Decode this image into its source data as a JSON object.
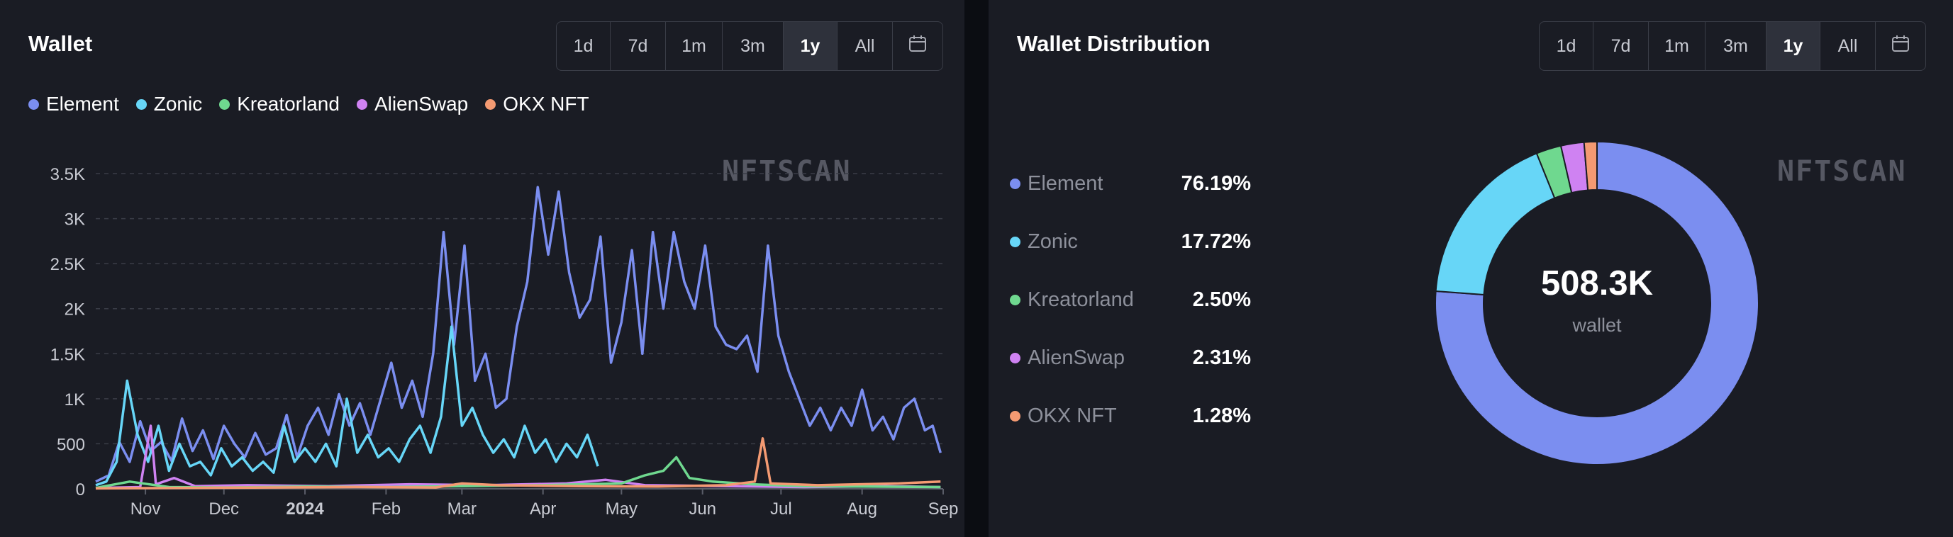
{
  "wallet_panel": {
    "title": "Wallet",
    "ranges": [
      "1d",
      "7d",
      "1m",
      "3m",
      "1y",
      "All"
    ],
    "active_range": "1y",
    "watermark": "NFTSCAN"
  },
  "distribution_panel": {
    "title": "Wallet Distribution",
    "ranges": [
      "1d",
      "7d",
      "1m",
      "3m",
      "1y",
      "All"
    ],
    "active_range": "1y",
    "watermark": "NFTSCAN",
    "center_value": "508.3K",
    "center_label": "wallet",
    "rows": [
      {
        "name": "Element",
        "pct": "76.19%"
      },
      {
        "name": "Zonic",
        "pct": "17.72%"
      },
      {
        "name": "Kreatorland",
        "pct": "2.50%"
      },
      {
        "name": "AlienSwap",
        "pct": "2.31%"
      },
      {
        "name": "OKX NFT",
        "pct": "1.28%"
      }
    ]
  },
  "colors": {
    "Element": "#7b8ef0",
    "Zonic": "#67d6f7",
    "Kreatorland": "#6fd88f",
    "AlienSwap": "#cf82f2",
    "OKX NFT": "#f49a72",
    "background": "#1a1c24",
    "grid": "#3a3d47"
  },
  "chart_data": [
    {
      "type": "line",
      "title": "Wallet",
      "x_labels": [
        "Nov",
        "Dec",
        "2024",
        "Feb",
        "Mar",
        "Apr",
        "May",
        "Jun",
        "Jul",
        "Aug",
        "Sep"
      ],
      "x_range": [
        "2023-10-13",
        "2024-09-01"
      ],
      "y_ticks": [
        "0",
        "500",
        "1K",
        "1.5K",
        "2K",
        "2.5K",
        "3K",
        "3.5K"
      ],
      "ylim": [
        0,
        3500
      ],
      "grid": true,
      "legend_position": "top-left",
      "series": [
        {
          "name": "Element",
          "points": [
            [
              "2023-10-13",
              80
            ],
            [
              "2023-10-18",
              150
            ],
            [
              "2023-10-22",
              520
            ],
            [
              "2023-10-26",
              300
            ],
            [
              "2023-10-30",
              750
            ],
            [
              "2023-11-03",
              420
            ],
            [
              "2023-11-07",
              520
            ],
            [
              "2023-11-11",
              310
            ],
            [
              "2023-11-15",
              780
            ],
            [
              "2023-11-19",
              420
            ],
            [
              "2023-11-23",
              650
            ],
            [
              "2023-11-27",
              330
            ],
            [
              "2023-12-01",
              700
            ],
            [
              "2023-12-05",
              500
            ],
            [
              "2023-12-09",
              350
            ],
            [
              "2023-12-13",
              620
            ],
            [
              "2023-12-17",
              380
            ],
            [
              "2023-12-21",
              450
            ],
            [
              "2023-12-25",
              820
            ],
            [
              "2023-12-29",
              350
            ],
            [
              "2024-01-02",
              700
            ],
            [
              "2024-01-06",
              900
            ],
            [
              "2024-01-10",
              600
            ],
            [
              "2024-01-14",
              1050
            ],
            [
              "2024-01-18",
              700
            ],
            [
              "2024-01-22",
              950
            ],
            [
              "2024-01-26",
              600
            ],
            [
              "2024-01-30",
              1000
            ],
            [
              "2024-02-03",
              1400
            ],
            [
              "2024-02-07",
              900
            ],
            [
              "2024-02-11",
              1200
            ],
            [
              "2024-02-15",
              800
            ],
            [
              "2024-02-19",
              1500
            ],
            [
              "2024-02-23",
              2850
            ],
            [
              "2024-02-27",
              1600
            ],
            [
              "2024-03-02",
              2700
            ],
            [
              "2024-03-06",
              1200
            ],
            [
              "2024-03-10",
              1500
            ],
            [
              "2024-03-14",
              900
            ],
            [
              "2024-03-18",
              1000
            ],
            [
              "2024-03-22",
              1800
            ],
            [
              "2024-03-26",
              2300
            ],
            [
              "2024-03-30",
              3350
            ],
            [
              "2024-04-03",
              2600
            ],
            [
              "2024-04-07",
              3300
            ],
            [
              "2024-04-11",
              2400
            ],
            [
              "2024-04-15",
              1900
            ],
            [
              "2024-04-19",
              2100
            ],
            [
              "2024-04-23",
              2800
            ],
            [
              "2024-04-27",
              1400
            ],
            [
              "2024-05-01",
              1850
            ],
            [
              "2024-05-05",
              2650
            ],
            [
              "2024-05-09",
              1500
            ],
            [
              "2024-05-13",
              2850
            ],
            [
              "2024-05-17",
              2000
            ],
            [
              "2024-05-21",
              2850
            ],
            [
              "2024-05-25",
              2300
            ],
            [
              "2024-05-29",
              2000
            ],
            [
              "2024-06-02",
              2700
            ],
            [
              "2024-06-06",
              1800
            ],
            [
              "2024-06-10",
              1600
            ],
            [
              "2024-06-14",
              1550
            ],
            [
              "2024-06-18",
              1700
            ],
            [
              "2024-06-22",
              1300
            ],
            [
              "2024-06-26",
              2700
            ],
            [
              "2024-06-30",
              1700
            ],
            [
              "2024-07-04",
              1300
            ],
            [
              "2024-07-08",
              1000
            ],
            [
              "2024-07-12",
              700
            ],
            [
              "2024-07-16",
              900
            ],
            [
              "2024-07-20",
              650
            ],
            [
              "2024-07-24",
              900
            ],
            [
              "2024-07-28",
              700
            ],
            [
              "2024-08-01",
              1100
            ],
            [
              "2024-08-05",
              650
            ],
            [
              "2024-08-09",
              800
            ],
            [
              "2024-08-13",
              550
            ],
            [
              "2024-08-17",
              900
            ],
            [
              "2024-08-21",
              1000
            ],
            [
              "2024-08-25",
              650
            ],
            [
              "2024-08-28",
              700
            ],
            [
              "2024-08-31",
              400
            ]
          ]
        },
        {
          "name": "Zonic",
          "points": [
            [
              "2023-10-13",
              40
            ],
            [
              "2023-10-17",
              80
            ],
            [
              "2023-10-21",
              300
            ],
            [
              "2023-10-25",
              1200
            ],
            [
              "2023-10-29",
              600
            ],
            [
              "2023-11-02",
              300
            ],
            [
              "2023-11-06",
              700
            ],
            [
              "2023-11-10",
              200
            ],
            [
              "2023-11-14",
              500
            ],
            [
              "2023-11-18",
              250
            ],
            [
              "2023-11-22",
              300
            ],
            [
              "2023-11-26",
              150
            ],
            [
              "2023-11-30",
              450
            ],
            [
              "2023-12-04",
              250
            ],
            [
              "2023-12-08",
              350
            ],
            [
              "2023-12-12",
              200
            ],
            [
              "2023-12-16",
              300
            ],
            [
              "2023-12-20",
              180
            ],
            [
              "2023-12-24",
              700
            ],
            [
              "2023-12-28",
              300
            ],
            [
              "2024-01-01",
              450
            ],
            [
              "2024-01-05",
              300
            ],
            [
              "2024-01-09",
              500
            ],
            [
              "2024-01-13",
              250
            ],
            [
              "2024-01-17",
              1000
            ],
            [
              "2024-01-21",
              400
            ],
            [
              "2024-01-25",
              600
            ],
            [
              "2024-01-29",
              350
            ],
            [
              "2024-02-02",
              450
            ],
            [
              "2024-02-06",
              300
            ],
            [
              "2024-02-10",
              550
            ],
            [
              "2024-02-14",
              700
            ],
            [
              "2024-02-18",
              400
            ],
            [
              "2024-02-22",
              800
            ],
            [
              "2024-02-26",
              1800
            ],
            [
              "2024-03-01",
              700
            ],
            [
              "2024-03-05",
              900
            ],
            [
              "2024-03-09",
              600
            ],
            [
              "2024-03-13",
              400
            ],
            [
              "2024-03-17",
              550
            ],
            [
              "2024-03-21",
              350
            ],
            [
              "2024-03-25",
              700
            ],
            [
              "2024-03-29",
              400
            ],
            [
              "2024-04-02",
              550
            ],
            [
              "2024-04-06",
              300
            ],
            [
              "2024-04-10",
              500
            ],
            [
              "2024-04-14",
              350
            ],
            [
              "2024-04-18",
              600
            ],
            [
              "2024-04-22",
              250
            ]
          ]
        },
        {
          "name": "Kreatorland",
          "points": [
            [
              "2023-10-13",
              10
            ],
            [
              "2023-10-26",
              80
            ],
            [
              "2023-11-10",
              20
            ],
            [
              "2023-12-01",
              15
            ],
            [
              "2024-01-01",
              25
            ],
            [
              "2024-02-01",
              20
            ],
            [
              "2024-03-01",
              30
            ],
            [
              "2024-04-01",
              40
            ],
            [
              "2024-05-01",
              60
            ],
            [
              "2024-05-10",
              150
            ],
            [
              "2024-05-17",
              200
            ],
            [
              "2024-05-22",
              350
            ],
            [
              "2024-05-27",
              120
            ],
            [
              "2024-06-05",
              80
            ],
            [
              "2024-06-20",
              50
            ],
            [
              "2024-07-10",
              30
            ],
            [
              "2024-08-01",
              25
            ],
            [
              "2024-08-31",
              20
            ]
          ]
        },
        {
          "name": "AlienSwap",
          "points": [
            [
              "2023-10-13",
              10
            ],
            [
              "2023-10-30",
              20
            ],
            [
              "2023-11-03",
              700
            ],
            [
              "2023-11-05",
              50
            ],
            [
              "2023-11-12",
              120
            ],
            [
              "2023-11-20",
              30
            ],
            [
              "2023-12-10",
              40
            ],
            [
              "2024-01-10",
              30
            ],
            [
              "2024-02-10",
              50
            ],
            [
              "2024-03-10",
              40
            ],
            [
              "2024-04-10",
              60
            ],
            [
              "2024-04-25",
              100
            ],
            [
              "2024-05-10",
              40
            ],
            [
              "2024-06-10",
              30
            ],
            [
              "2024-07-10",
              20
            ],
            [
              "2024-08-10",
              30
            ],
            [
              "2024-08-31",
              20
            ]
          ]
        },
        {
          "name": "OKX NFT",
          "points": [
            [
              "2023-10-13",
              5
            ],
            [
              "2023-11-15",
              10
            ],
            [
              "2023-12-20",
              15
            ],
            [
              "2024-01-20",
              20
            ],
            [
              "2024-02-20",
              15
            ],
            [
              "2024-03-01",
              60
            ],
            [
              "2024-03-15",
              40
            ],
            [
              "2024-04-15",
              30
            ],
            [
              "2024-05-15",
              25
            ],
            [
              "2024-06-10",
              40
            ],
            [
              "2024-06-21",
              80
            ],
            [
              "2024-06-24",
              560
            ],
            [
              "2024-06-27",
              60
            ],
            [
              "2024-07-15",
              40
            ],
            [
              "2024-08-15",
              60
            ],
            [
              "2024-08-31",
              80
            ]
          ]
        }
      ]
    },
    {
      "type": "pie",
      "title": "Wallet Distribution",
      "donut": true,
      "center_text": "508.3K wallet",
      "categories": [
        "Element",
        "Zonic",
        "Kreatorland",
        "AlienSwap",
        "OKX NFT"
      ],
      "values": [
        76.19,
        17.72,
        2.5,
        2.31,
        1.28
      ],
      "legend_position": "left"
    }
  ]
}
